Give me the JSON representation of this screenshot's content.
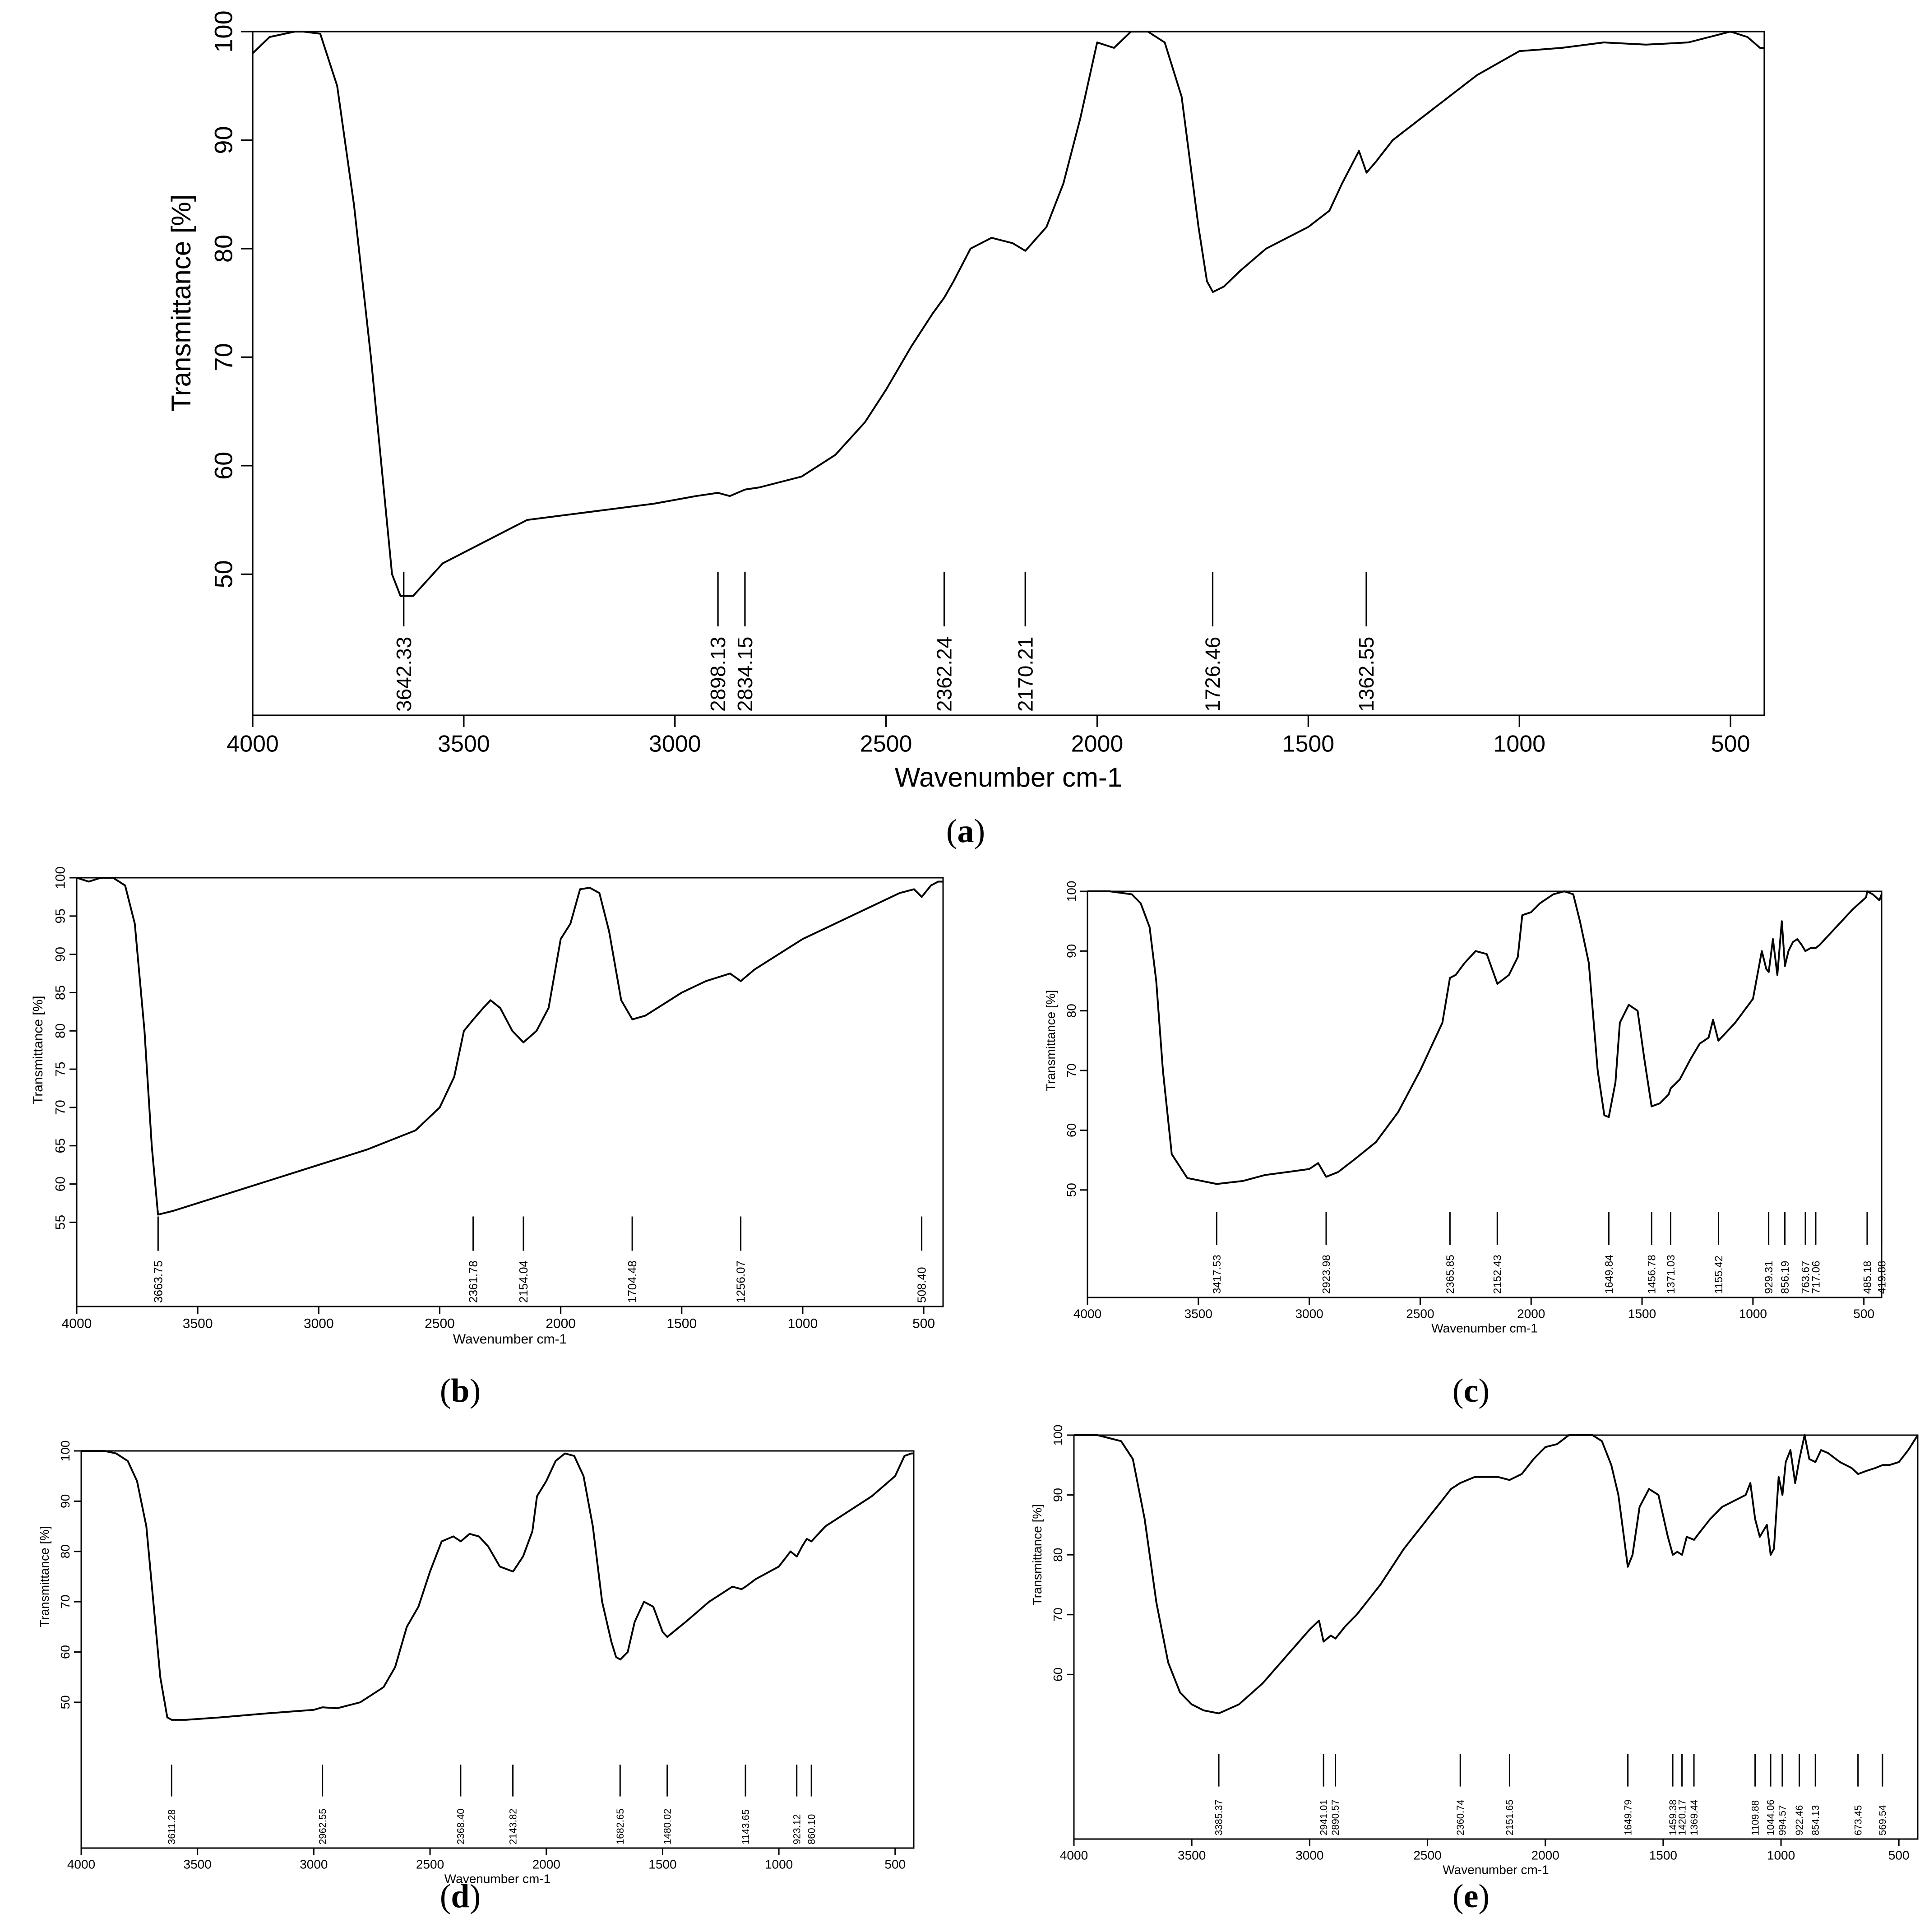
{
  "chart_data": [
    {
      "panel": "a",
      "type": "line",
      "xlabel": "Wavenumber cm-1",
      "ylabel": "Transmittance [%]",
      "xlim": [
        4000,
        420
      ],
      "ylim": [
        37,
        100
      ],
      "xticks": [
        "4000",
        "3500",
        "3000",
        "2500",
        "2000",
        "1500",
        "1000",
        "500"
      ],
      "yticks": [
        "50",
        "60",
        "70",
        "80",
        "90",
        "100"
      ],
      "peaks": [
        "3642.33",
        "2898.13",
        "2834.15",
        "2362.24",
        "2170.21",
        "1726.46",
        "1362.55"
      ],
      "series": [
        {
          "x": [
            4000,
            3960,
            3900,
            3880,
            3840,
            3800,
            3760,
            3720,
            3690,
            3670,
            3650,
            3620,
            3550,
            3450,
            3350,
            3250,
            3150,
            3050,
            2950,
            2898,
            2870,
            2834,
            2800,
            2700,
            2620,
            2550,
            2500,
            2440,
            2390,
            2362,
            2340,
            2300,
            2250,
            2200,
            2170,
            2120,
            2080,
            2040,
            2000,
            1960,
            1920,
            1880,
            1840,
            1800,
            1760,
            1740,
            1726,
            1700,
            1660,
            1600,
            1500,
            1450,
            1420,
            1380,
            1362,
            1340,
            1300,
            1200,
            1100,
            1000,
            900,
            800,
            700,
            600,
            550,
            500,
            460,
            430,
            420
          ],
          "y": [
            98,
            99.5,
            100,
            100,
            99.8,
            95,
            84,
            70,
            58,
            50,
            48,
            48,
            51,
            53,
            55,
            55.5,
            56,
            56.5,
            57.2,
            57.5,
            57.2,
            57.8,
            58,
            59,
            61,
            64,
            67,
            71,
            74,
            75.5,
            77,
            80,
            81,
            80.5,
            79.8,
            82,
            86,
            92,
            99,
            98.5,
            100,
            100,
            99,
            94,
            82,
            77,
            76,
            76.5,
            78,
            80,
            82,
            83.5,
            86,
            89,
            87,
            88,
            90,
            93,
            96,
            98.2,
            98.5,
            99,
            98.8,
            99,
            99.5,
            100,
            99.5,
            98.5,
            98.5
          ]
        }
      ]
    },
    {
      "panel": "b",
      "type": "line",
      "xlabel": "Wavenumber cm-1",
      "ylabel": "Transmittance [%]",
      "xlim": [
        4000,
        420
      ],
      "ylim": [
        44,
        100
      ],
      "xticks": [
        "4000",
        "3500",
        "3000",
        "2500",
        "2000",
        "1500",
        "1000",
        "500"
      ],
      "yticks": [
        "55",
        "60",
        "65",
        "70",
        "75",
        "80",
        "85",
        "90",
        "95",
        "100"
      ],
      "peaks": [
        "3663.75",
        "2361.78",
        "2154.04",
        "1704.48",
        "1256.07",
        "508.40"
      ],
      "series": [
        {
          "x": [
            4000,
            3950,
            3900,
            3850,
            3800,
            3760,
            3720,
            3690,
            3664,
            3600,
            3400,
            3200,
            3000,
            2800,
            2600,
            2500,
            2440,
            2400,
            2361,
            2320,
            2290,
            2250,
            2200,
            2154,
            2100,
            2050,
            2000,
            1960,
            1920,
            1880,
            1840,
            1800,
            1750,
            1704,
            1650,
            1500,
            1400,
            1300,
            1256,
            1200,
            1100,
            1000,
            900,
            800,
            700,
            600,
            540,
            508,
            470,
            440,
            420
          ],
          "y": [
            100,
            99.5,
            100,
            100,
            99,
            94,
            80,
            65,
            56,
            56.5,
            58.5,
            60.5,
            62.5,
            64.5,
            67,
            70,
            74,
            80,
            81.5,
            83,
            84,
            83,
            80,
            78.5,
            80,
            83,
            92,
            94,
            98.5,
            98.7,
            98,
            93,
            84,
            81.5,
            82,
            85,
            86.5,
            87.5,
            86.5,
            88,
            90,
            92,
            93.5,
            95,
            96.5,
            98,
            98.5,
            97.5,
            99,
            99.5,
            99.5
          ]
        }
      ]
    },
    {
      "panel": "c",
      "type": "line",
      "xlabel": "Wavenumber cm-1",
      "ylabel": "Transmittance [%]",
      "xlim": [
        4000,
        420
      ],
      "ylim": [
        32,
        100
      ],
      "xticks": [
        "4000",
        "3500",
        "3000",
        "2500",
        "2000",
        "1500",
        "1000",
        "500"
      ],
      "yticks": [
        "50",
        "60",
        "70",
        "80",
        "90",
        "100"
      ],
      "peaks": [
        "3417.53",
        "2923.98",
        "2365.85",
        "2152.43",
        "1649.84",
        "1456.78",
        "1371.03",
        "1155.42",
        "929.31",
        "856.19",
        "763.67",
        "717.06",
        "485.18",
        "419.88"
      ],
      "series": [
        {
          "x": [
            4000,
            3900,
            3800,
            3760,
            3720,
            3690,
            3660,
            3620,
            3550,
            3417,
            3300,
            3200,
            3100,
            3000,
            2960,
            2924,
            2870,
            2800,
            2700,
            2600,
            2500,
            2400,
            2366,
            2340,
            2300,
            2250,
            2200,
            2152,
            2100,
            2060,
            2040,
            2000,
            1960,
            1900,
            1850,
            1810,
            1780,
            1740,
            1700,
            1670,
            1650,
            1620,
            1600,
            1560,
            1520,
            1490,
            1457,
            1420,
            1380,
            1371,
            1330,
            1280,
            1240,
            1200,
            1180,
            1156,
            1130,
            1080,
            1040,
            1000,
            980,
            960,
            940,
            929,
            910,
            890,
            870,
            856,
            840,
            820,
            800,
            780,
            764,
            740,
            717,
            700,
            650,
            600,
            550,
            520,
            490,
            485,
            460,
            430,
            420
          ],
          "y": [
            100,
            100,
            99.5,
            98,
            94,
            85,
            70,
            56,
            52,
            51,
            51.5,
            52.5,
            53,
            53.5,
            54.5,
            52.2,
            53,
            55,
            58,
            63,
            70,
            78,
            85.5,
            86,
            88,
            90,
            89.5,
            84.5,
            86,
            89,
            96,
            96.5,
            98,
            99.5,
            100,
            99.5,
            95,
            88,
            70,
            62.5,
            62.2,
            68,
            78,
            81,
            80,
            72,
            64,
            64.5,
            66,
            67,
            68.5,
            72,
            74.5,
            75.5,
            78.5,
            75,
            76,
            78,
            80,
            82,
            86,
            90,
            87,
            86.5,
            92,
            86,
            95,
            87.5,
            90,
            91.5,
            92,
            91,
            90,
            90.5,
            90.5,
            91,
            93,
            95,
            97,
            98,
            99,
            100,
            99.5,
            98.5,
            99.5
          ]
        }
      ]
    },
    {
      "panel": "d",
      "type": "line",
      "xlabel": "Wavenumber cm-1",
      "ylabel": "Transmittance [%]",
      "xlim": [
        4000,
        420
      ],
      "ylim": [
        21,
        100
      ],
      "xticks": [
        "4000",
        "3500",
        "3000",
        "2500",
        "2000",
        "1500",
        "1000",
        "500"
      ],
      "yticks": [
        "50",
        "60",
        "70",
        "80",
        "90",
        "100"
      ],
      "peaks": [
        "3611.28",
        "2962.55",
        "2368.40",
        "2143.82",
        "1682.65",
        "1480.02",
        "1143.65",
        "923.12",
        "860.10"
      ],
      "series": [
        {
          "x": [
            4000,
            3950,
            3900,
            3850,
            3800,
            3760,
            3720,
            3690,
            3660,
            3630,
            3611,
            3550,
            3400,
            3200,
            3000,
            2962,
            2900,
            2800,
            2700,
            2650,
            2600,
            2550,
            2500,
            2450,
            2400,
            2368,
            2330,
            2290,
            2250,
            2200,
            2143,
            2100,
            2060,
            2040,
            2000,
            1960,
            1920,
            1880,
            1840,
            1800,
            1760,
            1720,
            1700,
            1682,
            1650,
            1620,
            1580,
            1540,
            1500,
            1480,
            1440,
            1400,
            1300,
            1200,
            1160,
            1143,
            1100,
            1000,
            950,
            923,
            900,
            880,
            860,
            800,
            700,
            600,
            500,
            460,
            430,
            420
          ],
          "y": [
            100,
            100,
            100,
            99.5,
            98,
            94,
            85,
            70,
            55,
            47,
            46.5,
            46.5,
            47,
            47.8,
            48.5,
            49,
            48.8,
            50,
            53,
            57,
            65,
            69,
            76,
            82,
            83,
            82,
            83.5,
            83,
            81,
            77,
            76,
            79,
            84,
            91,
            94,
            98,
            99.5,
            99,
            95,
            85,
            70,
            62,
            59,
            58.5,
            60,
            66,
            70,
            69,
            64,
            63,
            64.5,
            66,
            70,
            73,
            72.5,
            73,
            74.5,
            77,
            80,
            79,
            81,
            82.5,
            82,
            85,
            88,
            91,
            95,
            99,
            99.5,
            99.5
          ]
        }
      ]
    },
    {
      "panel": "e",
      "type": "line",
      "xlabel": "Wavenumber cm-1",
      "ylabel": "Transmittance [%]",
      "xlim": [
        4000,
        420
      ],
      "ylim": [
        32.5,
        100
      ],
      "xticks": [
        "4000",
        "3500",
        "3000",
        "2500",
        "2000",
        "1500",
        "1000",
        "500"
      ],
      "yticks": [
        "60",
        "70",
        "80",
        "90",
        "100"
      ],
      "peaks": [
        "3385.37",
        "2941.01",
        "2890.57",
        "2360.74",
        "2151.65",
        "1649.79",
        "1459.38",
        "1420.17",
        "1369.44",
        "1109.88",
        "1044.06",
        "994.57",
        "922.46",
        "854.13",
        "673.45",
        "569.54"
      ],
      "series": [
        {
          "x": [
            4000,
            3900,
            3800,
            3750,
            3700,
            3650,
            3600,
            3550,
            3500,
            3450,
            3385,
            3300,
            3200,
            3100,
            3000,
            2960,
            2941,
            2910,
            2890,
            2850,
            2800,
            2700,
            2600,
            2500,
            2400,
            2361,
            2300,
            2200,
            2152,
            2100,
            2050,
            2000,
            1950,
            1900,
            1850,
            1800,
            1760,
            1720,
            1690,
            1670,
            1650,
            1630,
            1600,
            1560,
            1520,
            1480,
            1459,
            1440,
            1420,
            1400,
            1369,
            1340,
            1300,
            1250,
            1200,
            1150,
            1130,
            1110,
            1090,
            1060,
            1044,
            1030,
            1010,
            994,
            980,
            960,
            940,
            922,
            900,
            880,
            854,
            830,
            800,
            750,
            700,
            673,
            640,
            600,
            569,
            540,
            500,
            460,
            420
          ],
          "y": [
            100,
            100,
            99,
            96,
            86,
            72,
            62,
            57,
            55,
            54,
            53.5,
            55,
            58.5,
            63,
            67.5,
            69,
            65.5,
            66.5,
            66,
            68,
            70,
            75,
            81,
            86,
            91,
            92,
            93,
            93,
            92.5,
            93.5,
            96,
            98,
            98.5,
            100,
            100,
            100,
            99,
            95,
            90,
            84,
            78,
            80,
            88,
            91,
            90,
            83,
            80,
            80.5,
            80,
            83,
            82.5,
            84,
            86,
            88,
            89,
            90,
            92,
            86,
            83,
            85,
            80,
            81,
            93,
            90,
            95.5,
            97.5,
            92,
            96,
            100,
            96,
            95.5,
            97.5,
            97,
            95.5,
            94.5,
            93.5,
            94,
            94.5,
            95,
            95,
            95.5,
            97.5,
            100
          ]
        }
      ]
    }
  ],
  "captions": {
    "a": "a",
    "b": "b",
    "c": "c",
    "d": "d",
    "e": "e"
  }
}
